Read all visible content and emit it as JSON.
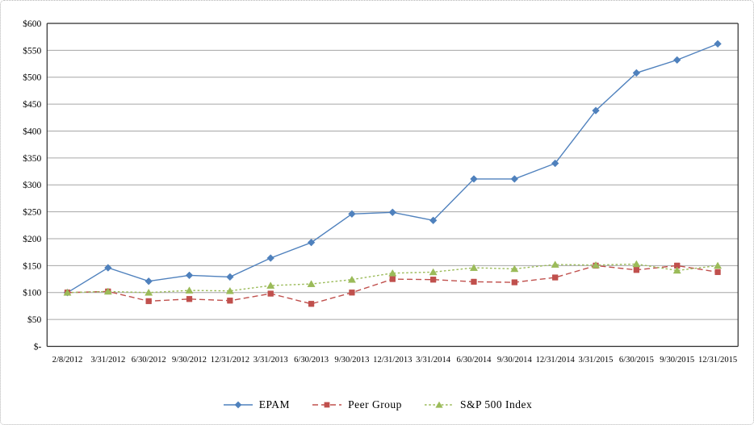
{
  "chart_data": {
    "type": "line",
    "title": "",
    "xlabel": "",
    "ylabel": "",
    "x_categories": [
      "2/8/2012",
      "3/31/2012",
      "6/30/2012",
      "9/30/2012",
      "12/31/2012",
      "3/31/2013",
      "6/30/2013",
      "9/30/2013",
      "12/31/2013",
      "3/31/2014",
      "6/30/2014",
      "9/30/2014",
      "12/31/2014",
      "3/31/2015",
      "6/30/2015",
      "9/30/2015",
      "12/31/2015"
    ],
    "y_axis": {
      "min": 0,
      "max": 600,
      "step": 50,
      "tick_labels": [
        "$-",
        "$50",
        "$100",
        "$150",
        "$200",
        "$250",
        "$300",
        "$350",
        "$400",
        "$450",
        "$500",
        "$550",
        "$600"
      ]
    },
    "grid": "horizontal",
    "legend_position": "bottom",
    "series": [
      {
        "name": "EPAM",
        "color": "#4f81bd",
        "marker": "diamond",
        "line_style": "solid",
        "values": [
          100,
          146,
          121,
          132,
          129,
          164,
          193,
          246,
          249,
          234,
          311,
          311,
          340,
          438,
          508,
          532,
          562
        ]
      },
      {
        "name": "Peer Group",
        "color": "#c0504d",
        "marker": "square",
        "line_style": "dashed",
        "values": [
          100,
          102,
          84,
          88,
          85,
          98,
          79,
          100,
          125,
          124,
          120,
          119,
          128,
          150,
          142,
          150,
          138
        ]
      },
      {
        "name": "S&P 500 Index",
        "color": "#9bbb59",
        "marker": "triangle",
        "line_style": "dotted",
        "values": [
          100,
          102,
          100,
          104,
          103,
          113,
          116,
          124,
          136,
          138,
          146,
          144,
          152,
          151,
          153,
          141,
          150
        ]
      }
    ]
  },
  "styles": {
    "grid_color": "#a6a6a6",
    "axis_color": "#2b2b2b",
    "background": "#ffffff",
    "text_color": "#000000"
  }
}
